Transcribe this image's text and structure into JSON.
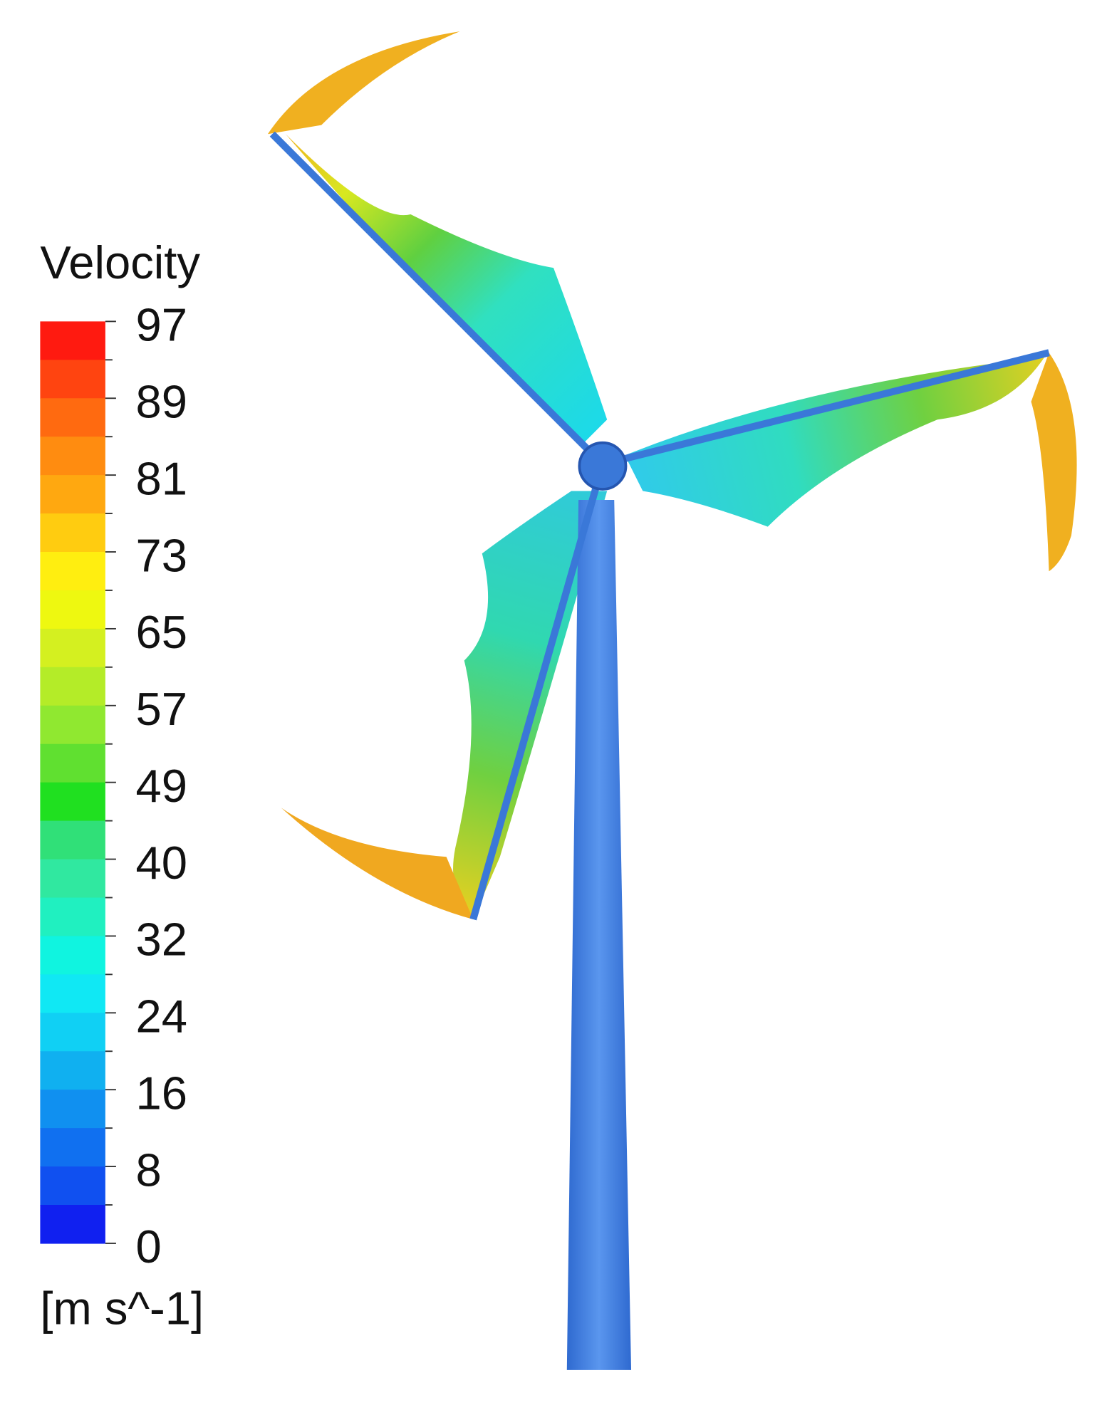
{
  "legend": {
    "title": "Velocity",
    "labels": [
      97,
      89,
      81,
      73,
      65,
      57,
      49,
      40,
      32,
      24,
      16,
      8,
      0
    ],
    "unit": "[m s^-1]"
  }
}
